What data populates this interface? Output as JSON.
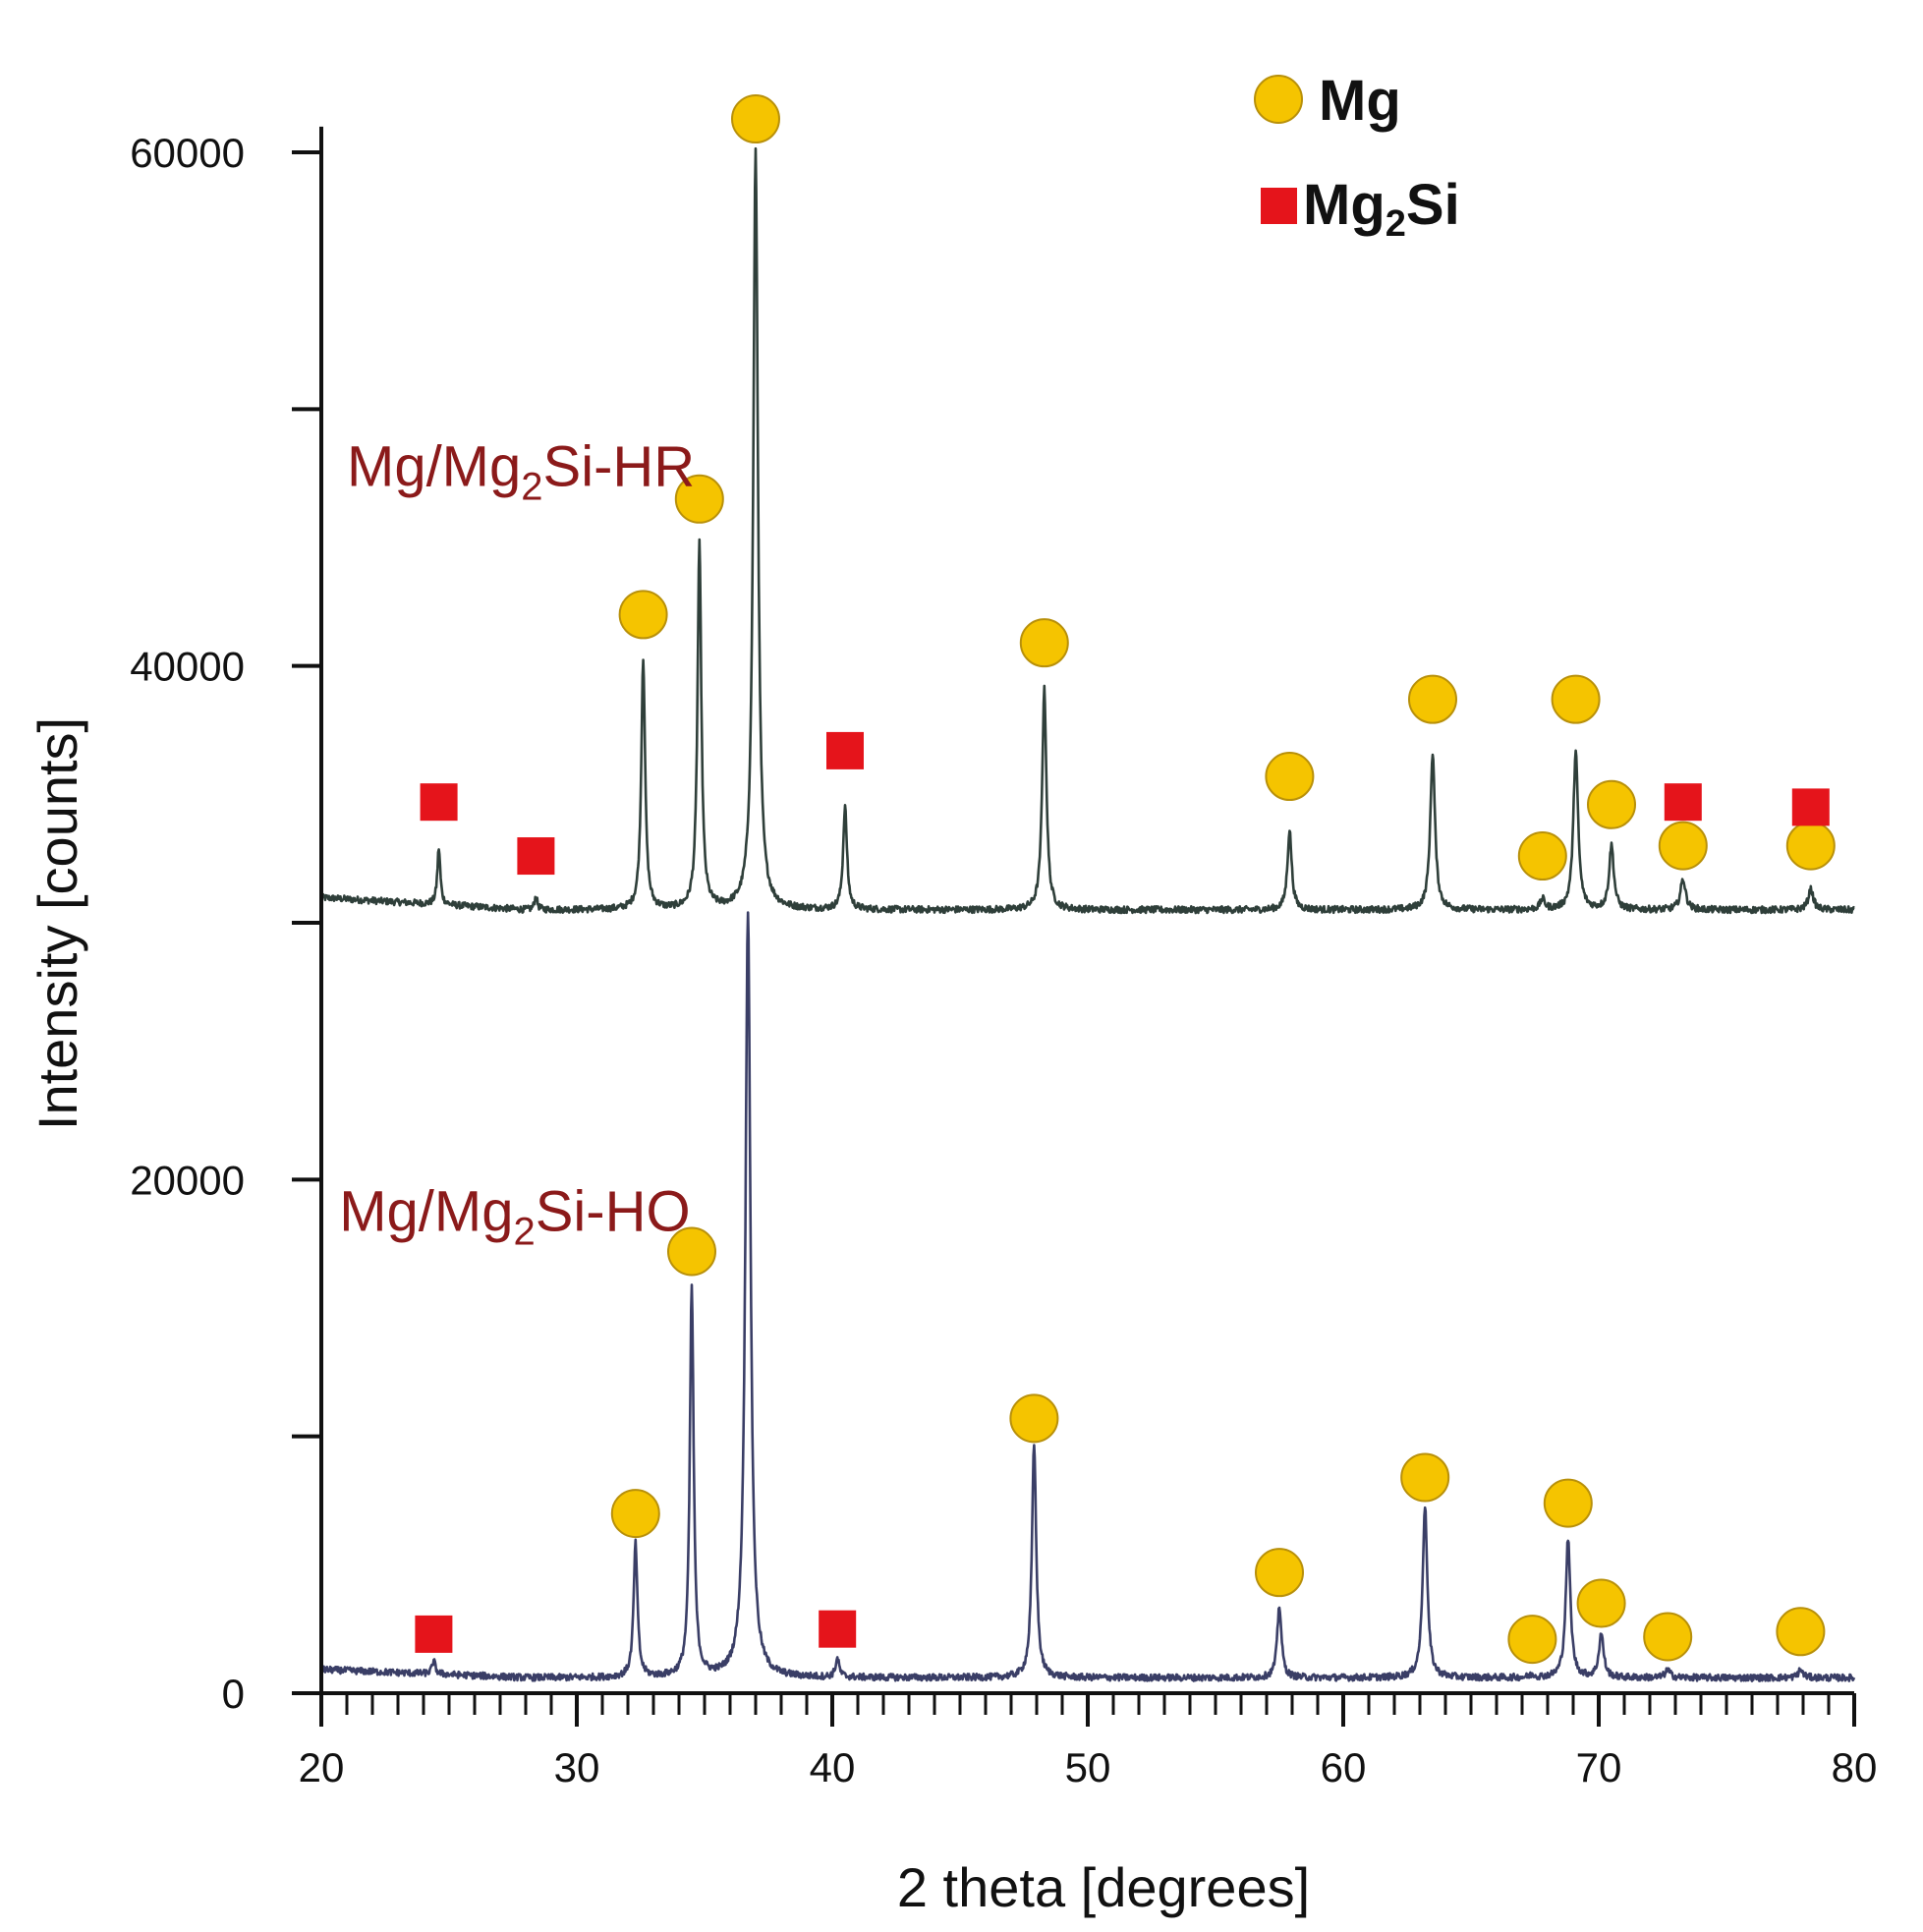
{
  "chart_data": {
    "type": "line",
    "title": "",
    "xlabel": "2 theta [degrees]",
    "ylabel": "Intensity [counts]",
    "xlim": [
      20,
      80
    ],
    "ylim": [
      0,
      60000
    ],
    "x_ticks": [
      20,
      30,
      40,
      50,
      60,
      70,
      80
    ],
    "y_ticks": [
      0,
      20000,
      40000,
      60000
    ],
    "legend": {
      "placement": "top-right",
      "entries": [
        {
          "name": "Mg",
          "marker": "circle",
          "color": "#f5c400"
        },
        {
          "name_main": "Mg",
          "name_sub": "2",
          "name_tail": "Si",
          "marker": "square",
          "color": "#e5141b"
        }
      ]
    },
    "label_color": "#8b1a1a",
    "series": [
      {
        "name_main": "Mg/Mg",
        "name_sub": "2",
        "name_tail": "Si-HR",
        "color": "#2f3f3a",
        "baseline": 30500,
        "label_pos": [
          21,
          47000
        ],
        "peaks": [
          {
            "x": 24.6,
            "y": 32700,
            "w": 0.07,
            "phase": "Mg2Si",
            "marker_y": 34700
          },
          {
            "x": 28.4,
            "y": 31000,
            "w": 0.07,
            "phase": "Mg2Si",
            "marker_y": 32600
          },
          {
            "x": 32.6,
            "y": 40300,
            "w": 0.09,
            "phase": "Mg",
            "marker_y": 42000
          },
          {
            "x": 34.8,
            "y": 44700,
            "w": 0.09,
            "phase": "Mg",
            "marker_y": 46500
          },
          {
            "x": 37.0,
            "y": 60000,
            "w": 0.11,
            "phase": "Mg",
            "marker_y": 61300
          },
          {
            "x": 40.5,
            "y": 34500,
            "w": 0.09,
            "phase": "Mg2Si",
            "marker_y": 36700
          },
          {
            "x": 48.3,
            "y": 39100,
            "w": 0.1,
            "phase": "Mg",
            "marker_y": 40900
          },
          {
            "x": 57.9,
            "y": 33600,
            "w": 0.1,
            "phase": "Mg",
            "marker_y": 35700
          },
          {
            "x": 63.5,
            "y": 36600,
            "w": 0.11,
            "phase": "Mg",
            "marker_y": 38700
          },
          {
            "x": 67.8,
            "y": 30900,
            "w": 0.11,
            "phase": "Mg",
            "marker_y": 32600
          },
          {
            "x": 69.1,
            "y": 36700,
            "w": 0.11,
            "phase": "Mg",
            "marker_y": 38700
          },
          {
            "x": 70.5,
            "y": 33000,
            "w": 0.11,
            "phase": "Mg",
            "marker_y": 34600
          },
          {
            "x": 73.3,
            "y": 31100,
            "w": 0.12,
            "phase": "Mg",
            "marker_y": 33000
          },
          {
            "x": 73.3,
            "y": 31100,
            "w": 0.12,
            "phase": "Mg2Si",
            "marker_y": 34700
          },
          {
            "x": 78.3,
            "y": 30900,
            "w": 0.12,
            "phase": "Mg",
            "marker_y": 33000
          },
          {
            "x": 78.3,
            "y": 30900,
            "w": 0.12,
            "phase": "Mg2Si",
            "marker_y": 34500
          }
        ]
      },
      {
        "name_main": "Mg/Mg",
        "name_sub": "2",
        "name_tail": "Si-HO",
        "color": "#3a3e66",
        "baseline": 600,
        "label_pos": [
          20.7,
          18000
        ],
        "peaks": [
          {
            "x": 24.4,
            "y": 1100,
            "w": 0.08,
            "phase": "Mg2Si",
            "marker_y": 2300
          },
          {
            "x": 32.3,
            "y": 5800,
            "w": 0.09,
            "phase": "Mg",
            "marker_y": 7000
          },
          {
            "x": 34.5,
            "y": 15800,
            "w": 0.09,
            "phase": "Mg",
            "marker_y": 17200
          },
          {
            "x": 36.7,
            "y": 30500,
            "w": 0.12,
            "phase": "Mg",
            "marker_y": null
          },
          {
            "x": 40.2,
            "y": 1300,
            "w": 0.09,
            "phase": "Mg2Si",
            "marker_y": 2500
          },
          {
            "x": 47.9,
            "y": 9700,
            "w": 0.1,
            "phase": "Mg",
            "marker_y": 10700
          },
          {
            "x": 57.5,
            "y": 3400,
            "w": 0.1,
            "phase": "Mg",
            "marker_y": 4700
          },
          {
            "x": 63.2,
            "y": 7300,
            "w": 0.11,
            "phase": "Mg",
            "marker_y": 8400
          },
          {
            "x": 67.4,
            "y": 700,
            "w": 0.11,
            "phase": "Mg",
            "marker_y": 2100
          },
          {
            "x": 68.8,
            "y": 6000,
            "w": 0.11,
            "phase": "Mg",
            "marker_y": 7400
          },
          {
            "x": 70.1,
            "y": 2300,
            "w": 0.11,
            "phase": "Mg",
            "marker_y": 3500
          },
          {
            "x": 72.7,
            "y": 900,
            "w": 0.12,
            "phase": "Mg",
            "marker_y": 2200
          },
          {
            "x": 77.9,
            "y": 900,
            "w": 0.12,
            "phase": "Mg",
            "marker_y": 2400
          }
        ]
      }
    ]
  }
}
